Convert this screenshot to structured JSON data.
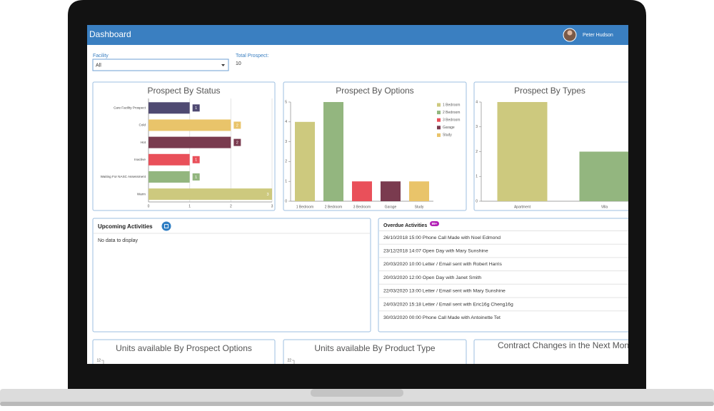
{
  "header": {
    "title": "Dashboard",
    "user": "Peter Hudson"
  },
  "filters": {
    "facility_label": "Facility",
    "facility_value": "All",
    "total_label": "Total Prospect:",
    "total_value": "10"
  },
  "charts": [
    {
      "type": "hbar",
      "title": "Prospect By Status",
      "categories": [
        "Care Facility Prospect",
        "Cold",
        "Hot",
        "Inactive",
        "Waiting For NASC Assessment",
        "Warm"
      ],
      "values": [
        1,
        2,
        2,
        1,
        1,
        3
      ],
      "colors": [
        "#4f4a72",
        "#e9c46a",
        "#7a3b4f",
        "#e9505a",
        "#93b67f",
        "#cdc97e"
      ],
      "xlim": [
        0,
        3
      ],
      "xticks": [
        0,
        1,
        2,
        3
      ],
      "grid": true
    },
    {
      "type": "bar",
      "title": "Prospect By Options",
      "categories": [
        "1 Bedroom",
        "2 Bedroom",
        "3 Bedroom",
        "Garage",
        "Study"
      ],
      "values": [
        4,
        5,
        1,
        1,
        1
      ],
      "colors": [
        "#cdc97e",
        "#93b67f",
        "#e9505a",
        "#7a3b4f",
        "#e9c46a"
      ],
      "ylim": [
        0,
        5
      ],
      "yticks": [
        0,
        1,
        2,
        3,
        4,
        5
      ],
      "legend": "right"
    },
    {
      "type": "bar",
      "title": "Prospect By Types",
      "categories": [
        "Apartment",
        "Villa"
      ],
      "values": [
        4,
        2
      ],
      "colors": [
        "#cdc97e",
        "#93b67f"
      ],
      "ylim": [
        0,
        4
      ],
      "yticks": [
        0,
        1,
        2,
        3,
        4
      ]
    }
  ],
  "upcoming": {
    "title": "Upcoming Activities",
    "empty": "No data to display"
  },
  "overdue": {
    "title": "Overdue Activities",
    "badge": "99+",
    "items": [
      "26/10/2018 15:00 Phone Call Made with Noel Edmond",
      "23/12/2018 14:07 Open Day with Mary Sunshine",
      "20/03/2020 10:00 Letter / Email sent with Robert Harris",
      "20/03/2020 12:00 Open Day with Janet Smith",
      "22/03/2020 13:00 Letter / Email sent with Mary Sunshine",
      "24/03/2020 15:18 Letter / Email sent with Eric16g Cheng16g",
      "30/03/2020 00:00 Phone Call Made with Antoinette Tet"
    ]
  },
  "bottom_charts": [
    {
      "title": "Units available By Prospect Options",
      "top_tick": 12
    },
    {
      "title": "Units available By Product Type",
      "top_tick": 22
    },
    {
      "title": "Contract Changes in the Next Months"
    }
  ]
}
